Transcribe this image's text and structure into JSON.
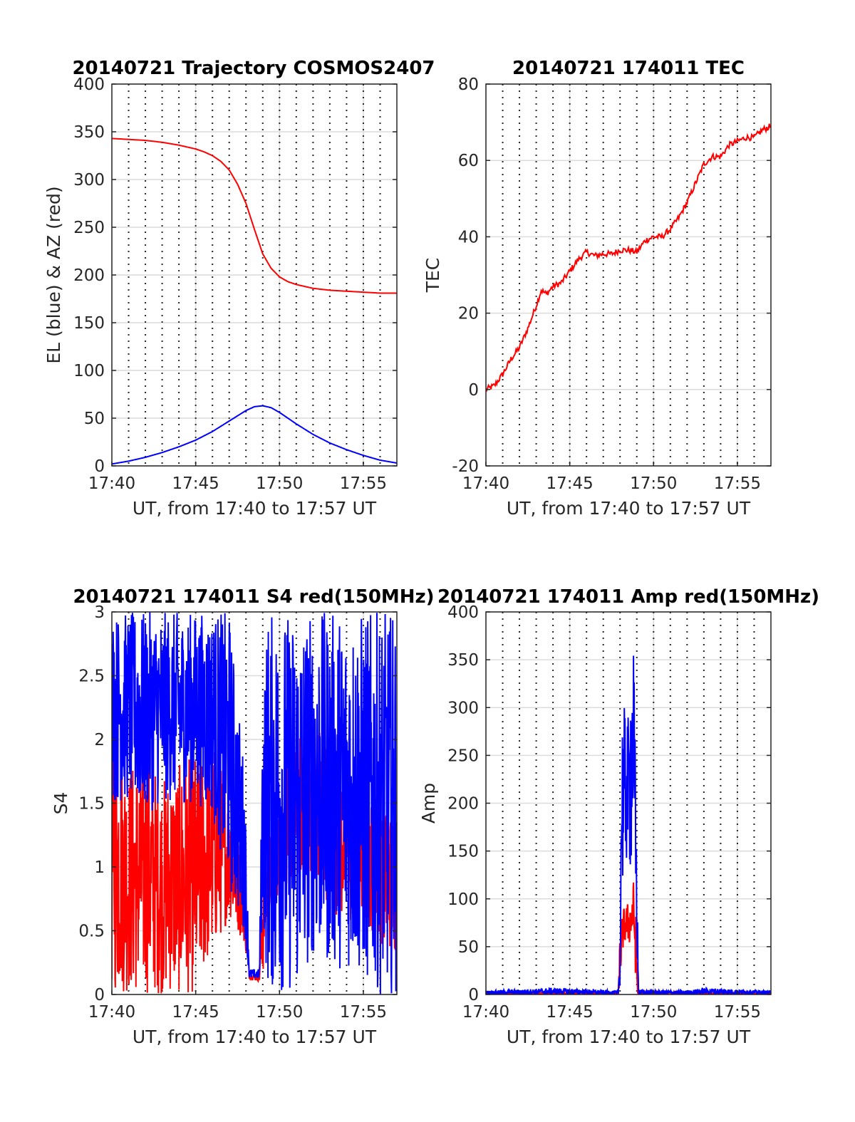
{
  "figure": {
    "colors": {
      "red": "#ff0000",
      "blue": "#0000ff",
      "grid": "#dcdcdc",
      "dotted": "#262626",
      "axis": "#262626"
    }
  },
  "chart_data": [
    {
      "id": "trajectory",
      "type": "line",
      "title": "20140721 Trajectory COSMOS2407",
      "xlabel": "UT, from 17:40 to 17:57 UT",
      "ylabel": "EL (blue) & AZ (red)",
      "xlim_min": [
        0,
        17
      ],
      "x_ticks": [
        {
          "v": 0,
          "label": "17:40"
        },
        {
          "v": 5,
          "label": "17:45"
        },
        {
          "v": 10,
          "label": "17:50"
        },
        {
          "v": 15,
          "label": "17:55"
        }
      ],
      "ylim": [
        0,
        400
      ],
      "y_ticks": [
        {
          "v": 0,
          "label": "0"
        },
        {
          "v": 50,
          "label": "50"
        },
        {
          "v": 100,
          "label": "100"
        },
        {
          "v": 150,
          "label": "150"
        },
        {
          "v": 200,
          "label": "200"
        },
        {
          "v": 250,
          "label": "250"
        },
        {
          "v": 300,
          "label": "300"
        },
        {
          "v": 350,
          "label": "350"
        },
        {
          "v": 400,
          "label": "400"
        }
      ],
      "dotted_minutes": [
        1,
        2,
        3,
        4,
        5,
        6,
        7,
        8,
        9,
        10,
        11,
        12,
        13,
        14,
        15,
        16
      ],
      "grid": true,
      "series": [
        {
          "key": "az",
          "color": "#ff0000",
          "x_min": [
            0,
            1,
            2,
            3,
            4,
            5,
            5.5,
            6,
            6.5,
            7,
            7.5,
            8,
            8.5,
            9,
            9.5,
            10,
            10.5,
            11,
            12,
            13,
            14,
            15,
            16,
            17
          ],
          "y": [
            343,
            342,
            341,
            339,
            336,
            332,
            329,
            325,
            319,
            310,
            295,
            275,
            248,
            222,
            207,
            198,
            193,
            190,
            186,
            184,
            183,
            182,
            181,
            181
          ]
        },
        {
          "key": "el",
          "color": "#0000ff",
          "x_min": [
            0,
            1,
            2,
            3,
            4,
            5,
            6,
            7,
            8,
            8.5,
            9,
            9.5,
            10,
            11,
            12,
            13,
            14,
            15,
            16,
            17
          ],
          "y": [
            2,
            5,
            9,
            14,
            20,
            27,
            36,
            47,
            58,
            62,
            63,
            61,
            56,
            44,
            33,
            24,
            17,
            11,
            6,
            3
          ]
        }
      ]
    },
    {
      "id": "tec",
      "type": "line",
      "title": "20140721 174011 TEC",
      "xlabel": "UT, from 17:40 to 17:57 UT",
      "ylabel": "TEC",
      "xlim_min": [
        0,
        17
      ],
      "x_ticks": [
        {
          "v": 0,
          "label": "17:40"
        },
        {
          "v": 5,
          "label": "17:45"
        },
        {
          "v": 10,
          "label": "17:50"
        },
        {
          "v": 15,
          "label": "17:55"
        }
      ],
      "ylim": [
        -20,
        80
      ],
      "y_ticks": [
        {
          "v": -20,
          "label": "-20"
        },
        {
          "v": 0,
          "label": "0"
        },
        {
          "v": 20,
          "label": "20"
        },
        {
          "v": 40,
          "label": "40"
        },
        {
          "v": 60,
          "label": "60"
        },
        {
          "v": 80,
          "label": "80"
        }
      ],
      "dotted_minutes": [
        1,
        2,
        3,
        4,
        5,
        6,
        7,
        8,
        9,
        10,
        11,
        12,
        13,
        14,
        15,
        16
      ],
      "grid": true,
      "series": [
        {
          "key": "tec",
          "color": "#ff0000",
          "x_min": [
            0,
            0.5,
            1,
            1.5,
            2,
            2.5,
            3,
            3.3,
            3.6,
            4,
            4.5,
            5,
            5.5,
            6,
            6.5,
            7,
            7.5,
            8,
            8.5,
            9,
            9.5,
            10,
            10.5,
            11,
            11.5,
            12,
            12.5,
            13,
            13.5,
            14,
            14.5,
            15,
            15.5,
            16,
            16.5,
            17
          ],
          "y": [
            0,
            1,
            4,
            8,
            11,
            16,
            22,
            26,
            25,
            27,
            28,
            31,
            34,
            36,
            35,
            35.5,
            35.5,
            36.5,
            36.5,
            36,
            39,
            40,
            40,
            42,
            45,
            49,
            54,
            59,
            61,
            61,
            64,
            65,
            66,
            66,
            68,
            69
          ]
        }
      ]
    },
    {
      "id": "s4",
      "type": "line",
      "title": "20140721 174011 S4 red(150MHz)",
      "xlabel": "UT, from 17:40 to 17:57 UT",
      "ylabel": "S4",
      "xlim_min": [
        0,
        17
      ],
      "x_ticks": [
        {
          "v": 0,
          "label": "17:40"
        },
        {
          "v": 5,
          "label": "17:45"
        },
        {
          "v": 10,
          "label": "17:50"
        },
        {
          "v": 15,
          "label": "17:55"
        }
      ],
      "ylim": [
        0,
        3
      ],
      "y_ticks": [
        {
          "v": 0,
          "label": "0"
        },
        {
          "v": 0.5,
          "label": "0.5"
        },
        {
          "v": 1,
          "label": "1"
        },
        {
          "v": 1.5,
          "label": "1.5"
        },
        {
          "v": 2,
          "label": "2"
        },
        {
          "v": 2.5,
          "label": "2.5"
        },
        {
          "v": 3,
          "label": "3"
        }
      ],
      "dotted_minutes": [
        1,
        2,
        3,
        4,
        5,
        6,
        7,
        8,
        9,
        10,
        11,
        12,
        13,
        14,
        15,
        16
      ],
      "grid": true,
      "series": [
        {
          "key": "s4_red",
          "color": "#ff0000",
          "noisy": true,
          "x_min": [
            0,
            1,
            2,
            3,
            4,
            5,
            6,
            7,
            7.9,
            8.2,
            8.8,
            9.0,
            9.3,
            10,
            11,
            12,
            13,
            14,
            15,
            16,
            17
          ],
          "low": [
            0,
            0,
            0,
            0,
            0,
            0,
            0.3,
            0.6,
            0.4,
            0.12,
            0.1,
            0.12,
            0.5,
            0.8,
            0.9,
            0.9,
            0.7,
            0.5,
            0.6,
            0.4,
            0.3
          ],
          "high": [
            2.2,
            1.8,
            1.9,
            1.7,
            1.8,
            1.9,
            2.0,
            1.6,
            1.0,
            0.17,
            0.16,
            1.1,
            1.2,
            1.6,
            2.0,
            2.2,
            2.0,
            1.8,
            1.6,
            1.5,
            1.4
          ]
        },
        {
          "key": "s4_blue",
          "color": "#0000ff",
          "noisy": true,
          "x_min": [
            0,
            1,
            2,
            3,
            4,
            5,
            6,
            7,
            7.9,
            8.2,
            8.8,
            9.0,
            9.3,
            10,
            11,
            12,
            13,
            14,
            15,
            16,
            17
          ],
          "low": [
            1.5,
            1.5,
            1.4,
            1.5,
            1.5,
            1.5,
            1.4,
            0.8,
            0.5,
            0.12,
            0.12,
            0.6,
            0.0,
            0.0,
            0.0,
            0.3,
            0.2,
            0.2,
            0.1,
            0.0,
            0.0
          ],
          "high": [
            3,
            3,
            3,
            3,
            3,
            3,
            3,
            3,
            1.8,
            0.2,
            0.2,
            2.4,
            3,
            3,
            3,
            3,
            3,
            3,
            3,
            3,
            3
          ]
        }
      ]
    },
    {
      "id": "amp",
      "type": "line",
      "title": "20140721 174011 Amp red(150MHz)",
      "xlabel": "UT, from 17:40 to 17:57 UT",
      "ylabel": "Amp",
      "xlim_min": [
        0,
        17
      ],
      "x_ticks": [
        {
          "v": 0,
          "label": "17:40"
        },
        {
          "v": 5,
          "label": "17:45"
        },
        {
          "v": 10,
          "label": "17:50"
        },
        {
          "v": 15,
          "label": "17:55"
        }
      ],
      "ylim": [
        0,
        400
      ],
      "y_ticks": [
        {
          "v": 0,
          "label": "0"
        },
        {
          "v": 50,
          "label": "50"
        },
        {
          "v": 100,
          "label": "100"
        },
        {
          "v": 150,
          "label": "150"
        },
        {
          "v": 200,
          "label": "200"
        },
        {
          "v": 250,
          "label": "250"
        },
        {
          "v": 300,
          "label": "300"
        },
        {
          "v": 350,
          "label": "350"
        },
        {
          "v": 400,
          "label": "400"
        }
      ],
      "dotted_minutes": [
        1,
        2,
        3,
        4,
        5,
        6,
        7,
        8,
        9,
        10,
        11,
        12,
        13,
        14,
        15,
        16
      ],
      "grid": true,
      "series": [
        {
          "key": "amp_red",
          "color": "#ff0000",
          "noisy": true,
          "x_min": [
            0,
            7.9,
            8.0,
            8.2,
            8.4,
            8.6,
            8.8,
            8.95,
            9.05,
            17
          ],
          "low": [
            0,
            0,
            10,
            50,
            55,
            50,
            60,
            10,
            0,
            0
          ],
          "high": [
            2,
            2,
            70,
            90,
            95,
            100,
            120,
            80,
            3,
            2
          ]
        },
        {
          "key": "amp_blue",
          "color": "#0000ff",
          "noisy": true,
          "x_min": [
            0,
            3,
            4,
            7.9,
            8.0,
            8.1,
            8.3,
            8.5,
            8.6,
            8.8,
            8.95,
            9.1,
            12,
            13,
            17
          ],
          "low": [
            0,
            0,
            0,
            0,
            10,
            100,
            130,
            140,
            120,
            160,
            60,
            0,
            0,
            0,
            0
          ],
          "high": [
            4,
            6,
            7,
            4,
            60,
            300,
            300,
            290,
            350,
            373,
            220,
            5,
            4,
            7,
            4
          ]
        }
      ]
    }
  ]
}
